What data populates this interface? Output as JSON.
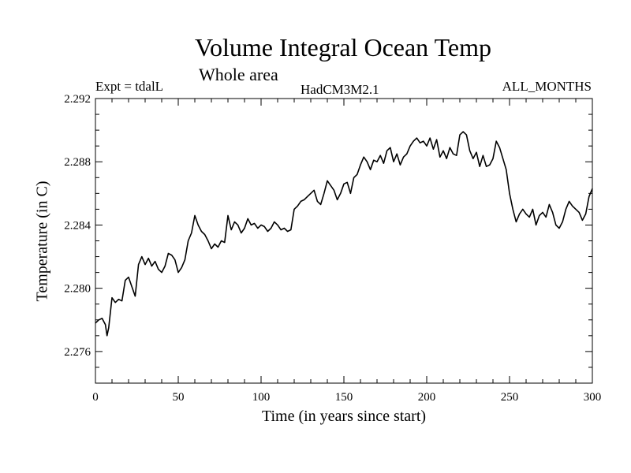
{
  "chart_data": {
    "type": "line",
    "title": "Volume Integral Ocean Temp",
    "subtitle": "Whole area",
    "expt_label": "Expt = tdalL",
    "model_label": "HadCM3M2.1",
    "period_label": "ALL_MONTHS",
    "xlabel": "Time (in years since start)",
    "ylabel": "Temperature (in C)",
    "xlim": [
      0,
      300
    ],
    "ylim": [
      2.274,
      2.292
    ],
    "xticks": [
      0,
      50,
      100,
      150,
      200,
      250,
      300
    ],
    "xtick_labels": [
      "0",
      "50",
      "100",
      "150",
      "200",
      "250",
      "300"
    ],
    "yticks": [
      2.276,
      2.28,
      2.284,
      2.288,
      2.292
    ],
    "ytick_labels": [
      "2.276",
      "2.280",
      "2.284",
      "2.288",
      "2.292"
    ],
    "grid": false,
    "series": [
      {
        "name": "Volume Integral Ocean Temp",
        "color": "#000000",
        "x": [
          0,
          2,
          4,
          6,
          7,
          8,
          10,
          12,
          14,
          16,
          18,
          20,
          22,
          24,
          26,
          28,
          30,
          32,
          34,
          36,
          38,
          40,
          42,
          44,
          46,
          48,
          50,
          52,
          54,
          56,
          58,
          60,
          62,
          64,
          66,
          68,
          70,
          72,
          74,
          76,
          78,
          80,
          82,
          84,
          86,
          88,
          90,
          92,
          94,
          96,
          98,
          100,
          102,
          104,
          106,
          108,
          110,
          112,
          114,
          116,
          118,
          120,
          122,
          124,
          126,
          128,
          130,
          132,
          134,
          136,
          138,
          140,
          142,
          144,
          146,
          148,
          150,
          152,
          154,
          156,
          158,
          160,
          162,
          164,
          166,
          168,
          170,
          172,
          174,
          176,
          178,
          180,
          182,
          184,
          186,
          188,
          190,
          192,
          194,
          196,
          198,
          200,
          202,
          204,
          206,
          208,
          210,
          212,
          214,
          216,
          218,
          220,
          222,
          224,
          226,
          228,
          230,
          232,
          234,
          236,
          238,
          240,
          242,
          244,
          246,
          248,
          250,
          252,
          254,
          256,
          258,
          260,
          262,
          264,
          266,
          268,
          270,
          272,
          274,
          276,
          278,
          280,
          282,
          284,
          286,
          288,
          290,
          292,
          294,
          296,
          298,
          300
        ],
        "y": [
          2.2778,
          2.278,
          2.2781,
          2.2777,
          2.277,
          2.2775,
          2.2794,
          2.2791,
          2.2793,
          2.2792,
          2.2805,
          2.2807,
          2.2801,
          2.2795,
          2.2815,
          2.282,
          2.2815,
          2.2819,
          2.2814,
          2.2817,
          2.2812,
          2.281,
          2.2814,
          2.2822,
          2.2821,
          2.2818,
          2.281,
          2.2813,
          2.2818,
          2.283,
          2.2835,
          2.2846,
          2.284,
          2.2836,
          2.2834,
          2.283,
          2.2825,
          2.2828,
          2.2826,
          2.283,
          2.2829,
          2.2846,
          2.2837,
          2.2842,
          2.284,
          2.2835,
          2.2838,
          2.2844,
          2.284,
          2.2841,
          2.2838,
          2.284,
          2.2839,
          2.2836,
          2.2838,
          2.2842,
          2.284,
          2.2837,
          2.2838,
          2.2836,
          2.2837,
          2.285,
          2.2852,
          2.2855,
          2.2856,
          2.2858,
          2.286,
          2.2862,
          2.2855,
          2.2853,
          2.286,
          2.2868,
          2.2865,
          2.2862,
          2.2856,
          2.286,
          2.2866,
          2.2867,
          2.286,
          2.287,
          2.2872,
          2.2878,
          2.2883,
          2.288,
          2.2875,
          2.2881,
          2.288,
          2.2884,
          2.2879,
          2.2887,
          2.2889,
          2.288,
          2.2885,
          2.2878,
          2.2883,
          2.2885,
          2.289,
          2.2893,
          2.2895,
          2.2892,
          2.2893,
          2.289,
          2.2895,
          2.2888,
          2.2894,
          2.2883,
          2.2887,
          2.2882,
          2.2889,
          2.2885,
          2.2884,
          2.2897,
          2.2899,
          2.2897,
          2.2887,
          2.2882,
          2.2886,
          2.2877,
          2.2884,
          2.2877,
          2.2878,
          2.2882,
          2.2893,
          2.2889,
          2.2882,
          2.2875,
          2.286,
          2.285,
          2.2842,
          2.2847,
          2.285,
          2.2847,
          2.2845,
          2.285,
          2.284,
          2.2846,
          2.2848,
          2.2845,
          2.2853,
          2.2848,
          2.284,
          2.2838,
          2.2842,
          2.285,
          2.2855,
          2.2852,
          2.285,
          2.2848,
          2.2843,
          2.2847,
          2.2858,
          2.2863
        ]
      }
    ]
  }
}
